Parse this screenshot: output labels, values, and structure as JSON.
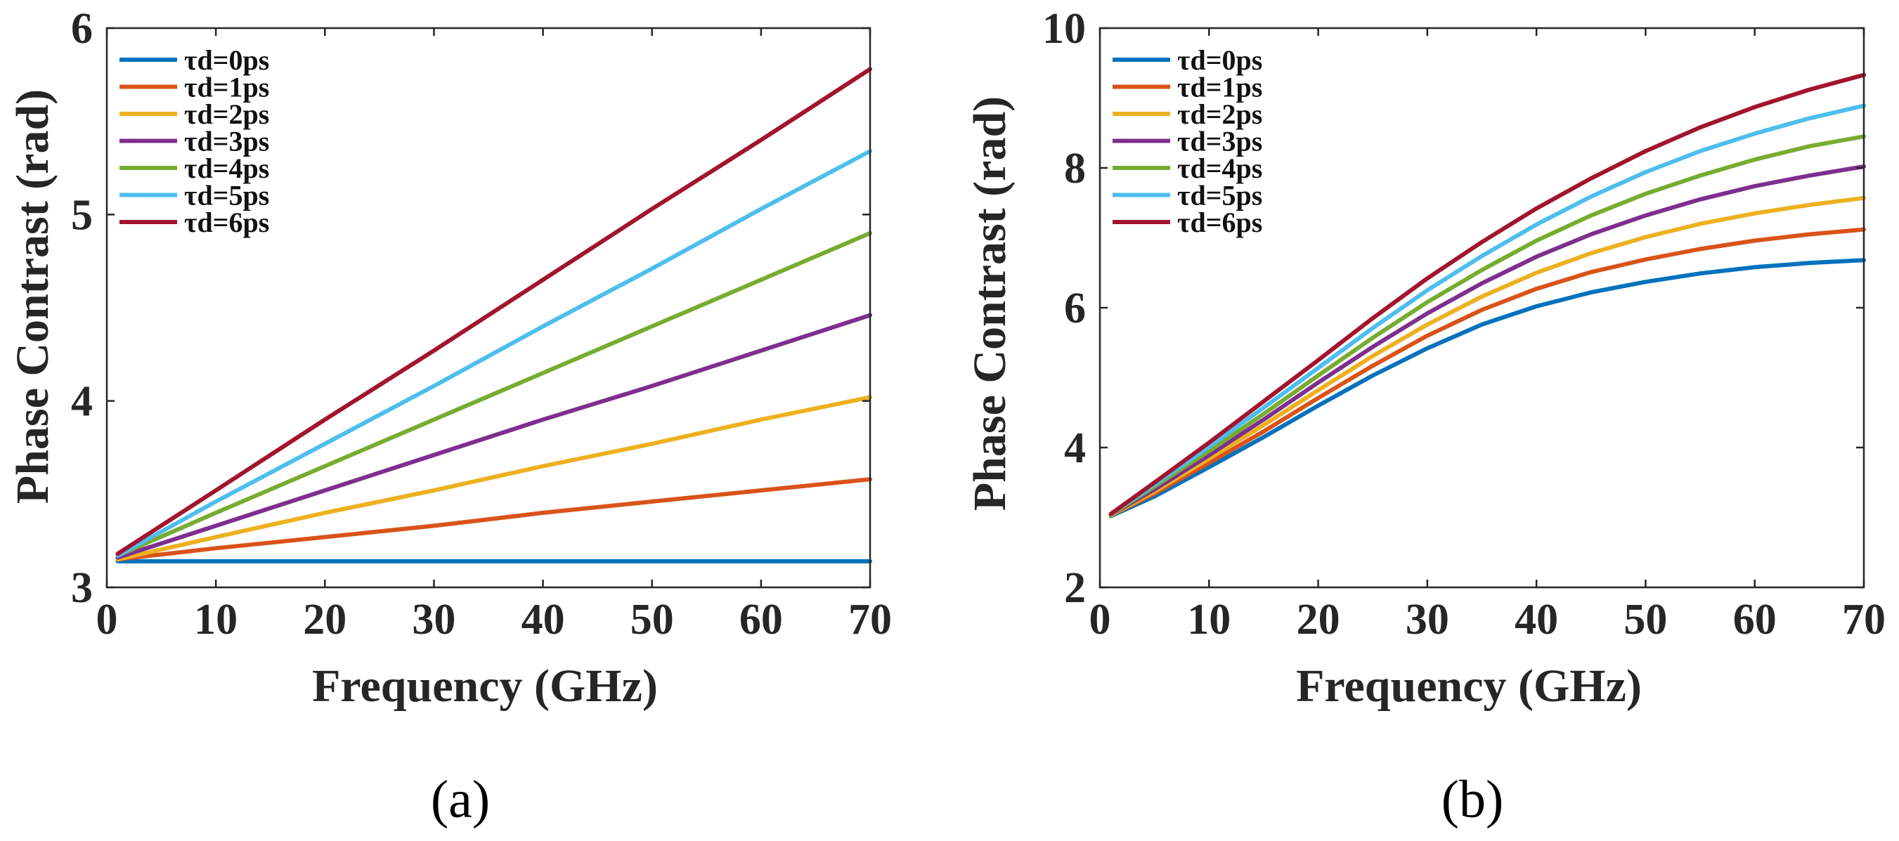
{
  "chart_data": [
    {
      "type": "line",
      "panel": "(a)",
      "title": "",
      "xlabel": "Frequency (GHz)",
      "ylabel": "Phase Contrast (rad)",
      "xlim": [
        0,
        70
      ],
      "ylim": [
        3,
        6
      ],
      "xticks": [
        0,
        10,
        20,
        30,
        40,
        50,
        60,
        70
      ],
      "yticks": [
        3,
        4,
        5,
        6
      ],
      "grid": false,
      "legend_position": "top-left",
      "series": [
        {
          "name": "τd=0ps",
          "color": "#0072BD",
          "x": [
            1,
            10,
            20,
            30,
            40,
            50,
            60,
            70
          ],
          "y": [
            3.14,
            3.14,
            3.14,
            3.14,
            3.14,
            3.14,
            3.14,
            3.14
          ]
        },
        {
          "name": "τd=1ps",
          "color": "#D95319",
          "x": [
            1,
            10,
            20,
            30,
            40,
            50,
            60,
            70
          ],
          "y": [
            3.15,
            3.21,
            3.27,
            3.33,
            3.4,
            3.46,
            3.52,
            3.58
          ]
        },
        {
          "name": "τd=2ps",
          "color": "#EDB120",
          "x": [
            1,
            10,
            20,
            30,
            40,
            50,
            60,
            70
          ],
          "y": [
            3.15,
            3.27,
            3.4,
            3.52,
            3.65,
            3.77,
            3.9,
            4.02
          ]
        },
        {
          "name": "τd=3ps",
          "color": "#7E2F8E",
          "x": [
            1,
            10,
            20,
            30,
            40,
            50,
            60,
            70
          ],
          "y": [
            3.16,
            3.33,
            3.52,
            3.71,
            3.9,
            4.08,
            4.27,
            4.46
          ]
        },
        {
          "name": "τd=4ps",
          "color": "#77AC30",
          "x": [
            1,
            10,
            20,
            30,
            40,
            50,
            60,
            70
          ],
          "y": [
            3.17,
            3.4,
            3.65,
            3.9,
            4.15,
            4.4,
            4.65,
            4.9
          ]
        },
        {
          "name": "τd=5ps",
          "color": "#4DBEEE",
          "x": [
            1,
            10,
            20,
            30,
            40,
            50,
            60,
            70
          ],
          "y": [
            3.17,
            3.46,
            3.77,
            4.08,
            4.4,
            4.71,
            5.03,
            5.34
          ]
        },
        {
          "name": "τd=6ps",
          "color": "#A2142F",
          "x": [
            1,
            10,
            20,
            30,
            40,
            50,
            60,
            70
          ],
          "y": [
            3.18,
            3.52,
            3.9,
            4.27,
            4.65,
            5.03,
            5.4,
            5.78
          ]
        }
      ]
    },
    {
      "type": "line",
      "panel": "(b)",
      "title": "",
      "xlabel": "Frequency (GHz)",
      "ylabel": "Phase Contrast (rad)",
      "xlim": [
        0,
        70
      ],
      "ylim": [
        2,
        10
      ],
      "xticks": [
        0,
        10,
        20,
        30,
        40,
        50,
        60,
        70
      ],
      "yticks": [
        2,
        4,
        6,
        8,
        10
      ],
      "grid": false,
      "legend_position": "top-left",
      "series": [
        {
          "name": "τd=0ps",
          "color": "#0072BD",
          "x": [
            1,
            5,
            10,
            15,
            20,
            25,
            30,
            35,
            40,
            45,
            50,
            55,
            60,
            65,
            70
          ],
          "y": [
            3.02,
            3.3,
            3.72,
            4.15,
            4.6,
            5.03,
            5.42,
            5.76,
            6.02,
            6.22,
            6.37,
            6.49,
            6.58,
            6.64,
            6.68
          ]
        },
        {
          "name": "τd=1ps",
          "color": "#D95319",
          "x": [
            1,
            5,
            10,
            15,
            20,
            25,
            30,
            35,
            40,
            45,
            50,
            55,
            60,
            65,
            70
          ],
          "y": [
            3.03,
            3.34,
            3.78,
            4.23,
            4.71,
            5.17,
            5.6,
            5.97,
            6.27,
            6.51,
            6.69,
            6.84,
            6.96,
            7.05,
            7.12
          ]
        },
        {
          "name": "τd=2ps",
          "color": "#EDB120",
          "x": [
            1,
            5,
            10,
            15,
            20,
            25,
            30,
            35,
            40,
            45,
            50,
            55,
            60,
            65,
            70
          ],
          "y": [
            3.03,
            3.37,
            3.84,
            4.32,
            4.82,
            5.31,
            5.76,
            6.16,
            6.5,
            6.78,
            7.01,
            7.2,
            7.35,
            7.47,
            7.57
          ]
        },
        {
          "name": "τd=3ps",
          "color": "#7E2F8E",
          "x": [
            1,
            5,
            10,
            15,
            20,
            25,
            30,
            35,
            40,
            45,
            50,
            55,
            60,
            65,
            70
          ],
          "y": [
            3.04,
            3.4,
            3.89,
            4.4,
            4.93,
            5.44,
            5.92,
            6.35,
            6.73,
            7.05,
            7.32,
            7.55,
            7.74,
            7.89,
            8.02
          ]
        },
        {
          "name": "τd=4ps",
          "color": "#77AC30",
          "x": [
            1,
            5,
            10,
            15,
            20,
            25,
            30,
            35,
            40,
            45,
            50,
            55,
            60,
            65,
            70
          ],
          "y": [
            3.04,
            3.44,
            3.95,
            4.48,
            5.03,
            5.57,
            6.08,
            6.54,
            6.96,
            7.32,
            7.63,
            7.89,
            8.12,
            8.31,
            8.45
          ]
        },
        {
          "name": "τd=5ps",
          "color": "#4DBEEE",
          "x": [
            1,
            5,
            10,
            15,
            20,
            25,
            30,
            35,
            40,
            45,
            50,
            55,
            60,
            65,
            70
          ],
          "y": [
            3.05,
            3.47,
            4.01,
            4.57,
            5.14,
            5.71,
            6.25,
            6.74,
            7.19,
            7.59,
            7.94,
            8.24,
            8.49,
            8.71,
            8.89
          ]
        },
        {
          "name": "τd=6ps",
          "color": "#A2142F",
          "x": [
            1,
            5,
            10,
            15,
            20,
            25,
            30,
            35,
            40,
            45,
            50,
            55,
            60,
            65,
            70
          ],
          "y": [
            3.05,
            3.5,
            4.07,
            4.66,
            5.25,
            5.85,
            6.42,
            6.94,
            7.42,
            7.85,
            8.24,
            8.58,
            8.87,
            9.12,
            9.33
          ]
        }
      ]
    }
  ]
}
